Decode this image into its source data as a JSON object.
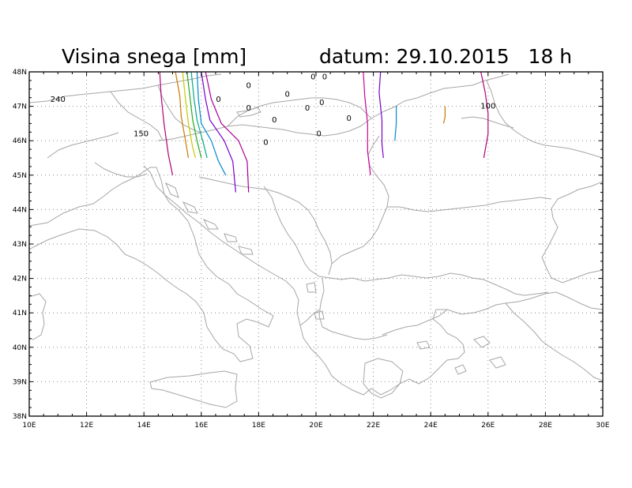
{
  "title": {
    "variable": "Visina snega [mm]",
    "date": "datum: 29.10.2015   18 h"
  },
  "map": {
    "lon_range": [
      10,
      30
    ],
    "lat_range": [
      38,
      48
    ],
    "lon_ticks": [
      "10E",
      "12E",
      "14E",
      "16E",
      "18E",
      "20E",
      "22E",
      "24E",
      "26E",
      "28E",
      "30E"
    ],
    "lat_ticks": [
      "38N",
      "39N",
      "40N",
      "41N",
      "42N",
      "43N",
      "44N",
      "45N",
      "46N",
      "47N",
      "48N"
    ],
    "grid": "dotted",
    "coastline_color": "#a6a6a6"
  },
  "contour_labels": [
    {
      "text": "240",
      "lon": 11.0,
      "lat": 47.2
    },
    {
      "text": "150",
      "lon": 13.9,
      "lat": 46.2
    },
    {
      "text": "100",
      "lon": 26.0,
      "lat": 47.0
    },
    {
      "text": "0",
      "lon": 17.65,
      "lat": 47.6
    },
    {
      "text": "0",
      "lon": 16.6,
      "lat": 47.2
    },
    {
      "text": "0",
      "lon": 17.65,
      "lat": 46.95
    },
    {
      "text": "0",
      "lon": 19.0,
      "lat": 47.35
    },
    {
      "text": "0",
      "lon": 19.9,
      "lat": 47.85
    },
    {
      "text": "0",
      "lon": 20.3,
      "lat": 47.85
    },
    {
      "text": "0",
      "lon": 20.2,
      "lat": 47.1
    },
    {
      "text": "0",
      "lon": 19.7,
      "lat": 46.95
    },
    {
      "text": "0",
      "lon": 18.55,
      "lat": 46.6
    },
    {
      "text": "0",
      "lon": 21.15,
      "lat": 46.65
    },
    {
      "text": "0",
      "lon": 20.1,
      "lat": 46.2
    },
    {
      "text": "0",
      "lon": 18.25,
      "lat": 45.95
    }
  ],
  "contours": [
    {
      "color": "#b0007a",
      "points": [
        [
          14.55,
          48
        ],
        [
          14.6,
          47.3
        ],
        [
          14.7,
          46.5
        ],
        [
          14.85,
          45.6
        ],
        [
          15.0,
          45.0
        ]
      ]
    },
    {
      "color": "#cc7700",
      "points": [
        [
          15.1,
          48
        ],
        [
          15.25,
          47.3
        ],
        [
          15.3,
          46.7
        ],
        [
          15.45,
          46.0
        ],
        [
          15.55,
          45.5
        ]
      ]
    },
    {
      "color": "#c8c800",
      "points": [
        [
          15.35,
          48
        ],
        [
          15.45,
          47.2
        ],
        [
          15.55,
          46.5
        ],
        [
          15.7,
          45.8
        ],
        [
          15.8,
          45.5
        ]
      ]
    },
    {
      "color": "#22aa22",
      "points": [
        [
          15.5,
          48
        ],
        [
          15.6,
          47.3
        ],
        [
          15.7,
          46.6
        ],
        [
          15.85,
          46.0
        ],
        [
          16.0,
          45.5
        ]
      ]
    },
    {
      "color": "#00aa88",
      "points": [
        [
          15.65,
          48
        ],
        [
          15.75,
          47.2
        ],
        [
          15.85,
          46.6
        ],
        [
          16.05,
          46.0
        ],
        [
          16.2,
          45.5
        ]
      ]
    },
    {
      "color": "#0088cc",
      "points": [
        [
          15.85,
          48
        ],
        [
          15.9,
          47.2
        ],
        [
          16.0,
          46.5
        ],
        [
          16.35,
          46.0
        ],
        [
          16.6,
          45.4
        ],
        [
          16.85,
          45.0
        ]
      ]
    },
    {
      "color": "#7700cc",
      "points": [
        [
          16.0,
          48
        ],
        [
          16.15,
          47.2
        ],
        [
          16.3,
          46.6
        ],
        [
          16.8,
          46.0
        ],
        [
          17.1,
          45.4
        ],
        [
          17.2,
          44.5
        ]
      ]
    },
    {
      "color": "#aa0099",
      "points": [
        [
          16.15,
          48
        ],
        [
          16.35,
          47.2
        ],
        [
          16.7,
          46.5
        ],
        [
          17.3,
          46.0
        ],
        [
          17.6,
          45.4
        ],
        [
          17.65,
          44.5
        ]
      ]
    },
    {
      "color": "#cc0099",
      "points": [
        [
          21.65,
          48
        ],
        [
          21.7,
          47.3
        ],
        [
          21.8,
          46.5
        ],
        [
          21.8,
          45.7
        ],
        [
          21.9,
          45.0
        ]
      ]
    },
    {
      "color": "#7700cc",
      "points": [
        [
          22.25,
          48
        ],
        [
          22.2,
          47.4
        ],
        [
          22.3,
          46.6
        ],
        [
          22.3,
          45.9
        ],
        [
          22.35,
          45.5
        ]
      ]
    },
    {
      "color": "#0088cc",
      "points": [
        [
          22.8,
          47.0
        ],
        [
          22.8,
          46.5
        ],
        [
          22.75,
          46.0
        ]
      ]
    },
    {
      "color": "#cc7700",
      "points": [
        [
          24.5,
          47.0
        ],
        [
          24.5,
          46.7
        ],
        [
          24.45,
          46.5
        ]
      ]
    },
    {
      "color": "#b0007a",
      "points": [
        [
          25.75,
          48
        ],
        [
          25.9,
          47.4
        ],
        [
          26.0,
          46.8
        ],
        [
          26.0,
          46.2
        ],
        [
          25.85,
          45.5
        ]
      ]
    }
  ]
}
